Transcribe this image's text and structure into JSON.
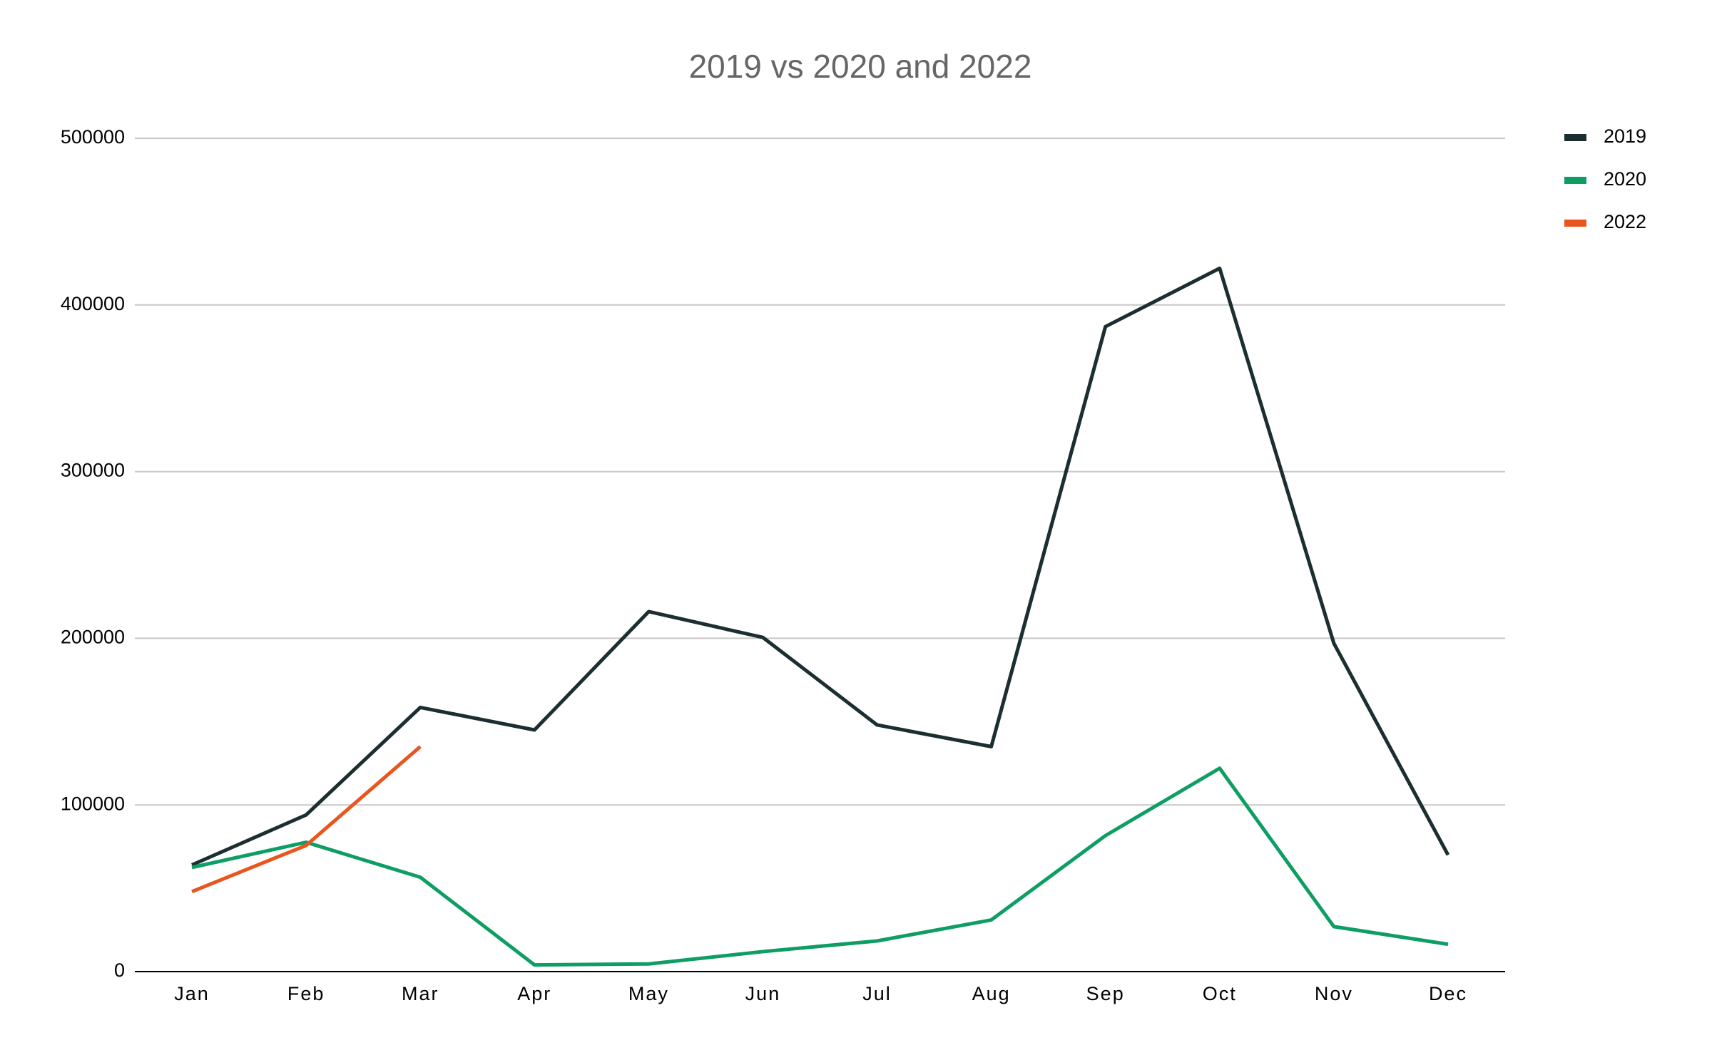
{
  "chart_data": {
    "type": "line",
    "title": "2019 vs 2020 and 2022",
    "categories": [
      "Jan",
      "Feb",
      "Mar",
      "Apr",
      "May",
      "Jun",
      "Jul",
      "Aug",
      "Sep",
      "Oct",
      "Nov",
      "Dec"
    ],
    "series": [
      {
        "name": "2019",
        "color": "#1b2e30",
        "values": [
          64000,
          94000,
          158500,
          145000,
          216000,
          200500,
          148000,
          135000,
          387000,
          422000,
          197000,
          70000
        ]
      },
      {
        "name": "2020",
        "color": "#0e9e64",
        "values": [
          62500,
          77600,
          56600,
          4000,
          4600,
          12000,
          18400,
          31000,
          81600,
          122000,
          27000,
          16400
        ]
      },
      {
        "name": "2022",
        "color": "#e8561e",
        "values": [
          48000,
          75700,
          135000,
          null,
          null,
          null,
          null,
          null,
          null,
          null,
          null,
          null
        ]
      }
    ],
    "ylim": [
      0,
      500000
    ],
    "yticks": [
      0,
      100000,
      200000,
      300000,
      400000,
      500000
    ],
    "grid": true,
    "legend": "right"
  }
}
